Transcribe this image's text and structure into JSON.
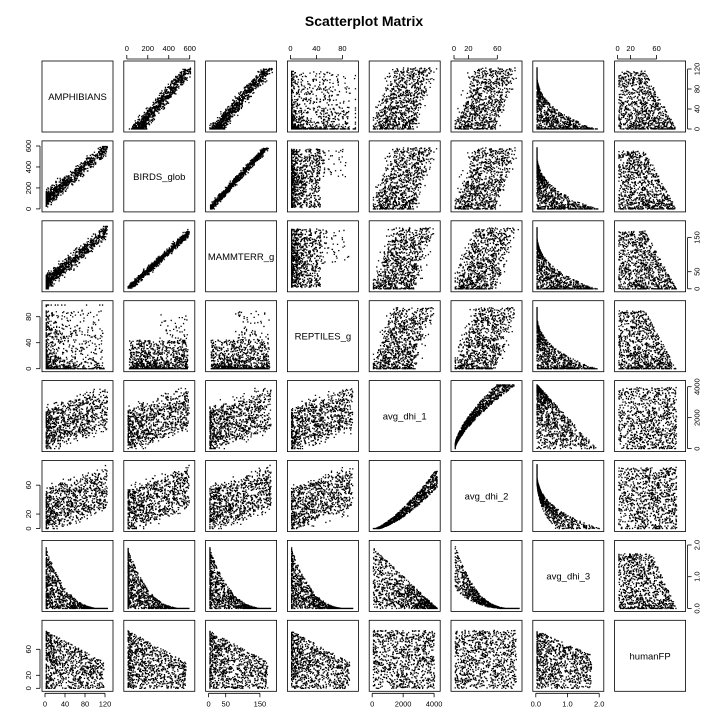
{
  "chart_data": {
    "type": "scatter",
    "subtype": "scatterplot-matrix",
    "title": "Scatterplot Matrix",
    "variables": [
      {
        "name": "AMPHIBIANS",
        "range": [
          0,
          130
        ],
        "ticks": [
          0,
          40,
          80,
          120
        ],
        "tick_labels": [
          "0",
          "40",
          "80",
          "120"
        ]
      },
      {
        "name": "BIRDS_glob",
        "range": [
          0,
          620
        ],
        "ticks": [
          0,
          200,
          400,
          600
        ],
        "tick_labels": [
          "0",
          "200",
          "400",
          "600"
        ]
      },
      {
        "name": "MAMMTERR_g",
        "range": [
          0,
          190
        ],
        "ticks": [
          0,
          50,
          150
        ],
        "tick_labels": [
          "0",
          "50",
          "150"
        ]
      },
      {
        "name": "REPTILES_g",
        "range": [
          0,
          100
        ],
        "ticks": [
          0,
          40,
          80
        ],
        "tick_labels": [
          "0",
          "40",
          "80"
        ]
      },
      {
        "name": "avg_dhi_1",
        "range": [
          0,
          4200
        ],
        "ticks": [
          0,
          2000,
          4000
        ],
        "tick_labels": [
          "0",
          "2000",
          "4000"
        ]
      },
      {
        "name": "avg_dhi_2",
        "range": [
          0,
          90
        ],
        "ticks": [
          0,
          20,
          60
        ],
        "tick_labels": [
          "0",
          "20",
          "60"
        ]
      },
      {
        "name": "avg_dhi_3",
        "range": [
          0,
          2.05
        ],
        "ticks": [
          0.0,
          1.0,
          2.0
        ],
        "tick_labels": [
          "0.0",
          "1.0",
          "2.0"
        ]
      },
      {
        "name": "humanFP",
        "range": [
          0,
          100
        ],
        "ticks": [
          0,
          20,
          60
        ],
        "tick_labels": [
          "0",
          "20",
          "60"
        ]
      }
    ],
    "top_axis_columns": [
      1,
      3,
      5,
      7
    ],
    "bottom_axis_columns": [
      0,
      2,
      4,
      6
    ],
    "left_axis_rows": [
      1,
      3,
      5,
      7
    ],
    "right_axis_rows": [
      0,
      2,
      4,
      6
    ],
    "point_color": "#000000",
    "grid": false,
    "legend": "none"
  }
}
